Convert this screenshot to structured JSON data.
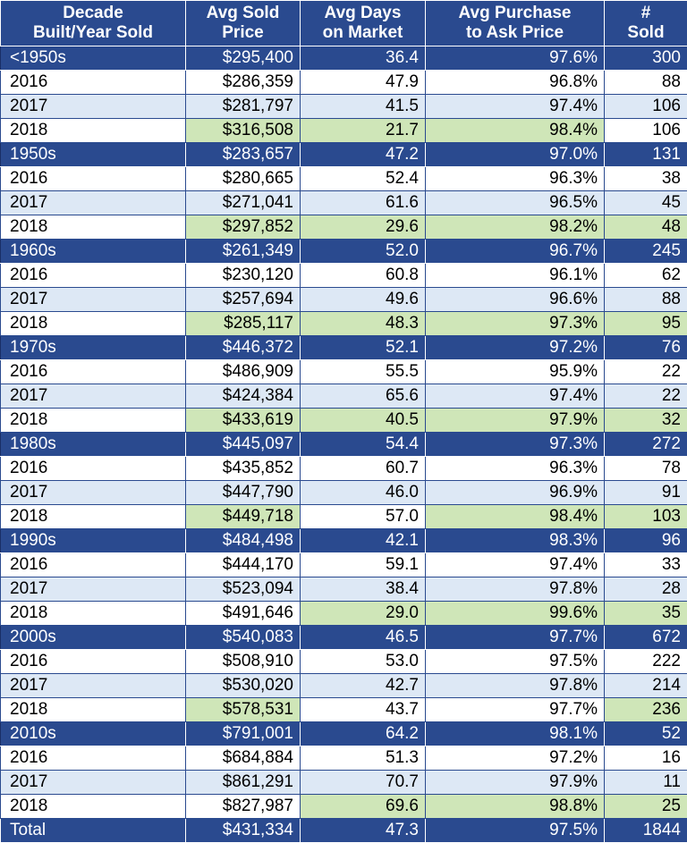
{
  "headers": [
    "Decade\nBuilt/Year Sold",
    "Avg Sold\nPrice",
    "Avg Days\non Market",
    "Avg Purchase\nto Ask Price",
    "#\nSold"
  ],
  "colors": {
    "header_bg": "#2a4a8f",
    "row_alt": "#dde8f5",
    "highlight": "#cfe6b8"
  },
  "rows": [
    {
      "type": "decade",
      "cells": [
        "<1950s",
        "$295,400",
        "36.4",
        "97.6%",
        "300"
      ],
      "hl": [
        0,
        0,
        0,
        0,
        0
      ]
    },
    {
      "type": "y2016",
      "cells": [
        "2016",
        "$286,359",
        "47.9",
        "96.8%",
        "88"
      ],
      "hl": [
        0,
        0,
        0,
        0,
        0
      ]
    },
    {
      "type": "y2017",
      "cells": [
        "2017",
        "$281,797",
        "41.5",
        "97.4%",
        "106"
      ],
      "hl": [
        0,
        0,
        0,
        0,
        0
      ]
    },
    {
      "type": "y2018",
      "cells": [
        "2018",
        "$316,508",
        "21.7",
        "98.4%",
        "106"
      ],
      "hl": [
        0,
        1,
        1,
        1,
        0
      ]
    },
    {
      "type": "decade",
      "cells": [
        "1950s",
        "$283,657",
        "47.2",
        "97.0%",
        "131"
      ],
      "hl": [
        0,
        0,
        0,
        0,
        0
      ]
    },
    {
      "type": "y2016",
      "cells": [
        "2016",
        "$280,665",
        "52.4",
        "96.3%",
        "38"
      ],
      "hl": [
        0,
        0,
        0,
        0,
        0
      ]
    },
    {
      "type": "y2017",
      "cells": [
        "2017",
        "$271,041",
        "61.6",
        "96.5%",
        "45"
      ],
      "hl": [
        0,
        0,
        0,
        0,
        0
      ]
    },
    {
      "type": "y2018",
      "cells": [
        "2018",
        "$297,852",
        "29.6",
        "98.2%",
        "48"
      ],
      "hl": [
        0,
        1,
        1,
        1,
        1
      ]
    },
    {
      "type": "decade",
      "cells": [
        "1960s",
        "$261,349",
        "52.0",
        "96.7%",
        "245"
      ],
      "hl": [
        0,
        0,
        0,
        0,
        0
      ]
    },
    {
      "type": "y2016",
      "cells": [
        "2016",
        "$230,120",
        "60.8",
        "96.1%",
        "62"
      ],
      "hl": [
        0,
        0,
        0,
        0,
        0
      ]
    },
    {
      "type": "y2017",
      "cells": [
        "2017",
        "$257,694",
        "49.6",
        "96.6%",
        "88"
      ],
      "hl": [
        0,
        0,
        0,
        0,
        0
      ]
    },
    {
      "type": "y2018",
      "cells": [
        "2018",
        "$285,117",
        "48.3",
        "97.3%",
        "95"
      ],
      "hl": [
        0,
        1,
        1,
        1,
        1
      ]
    },
    {
      "type": "decade",
      "cells": [
        "1970s",
        "$446,372",
        "52.1",
        "97.2%",
        "76"
      ],
      "hl": [
        0,
        0,
        0,
        0,
        0
      ]
    },
    {
      "type": "y2016",
      "cells": [
        "2016",
        "$486,909",
        "55.5",
        "95.9%",
        "22"
      ],
      "hl": [
        0,
        0,
        0,
        0,
        0
      ]
    },
    {
      "type": "y2017",
      "cells": [
        "2017",
        "$424,384",
        "65.6",
        "97.4%",
        "22"
      ],
      "hl": [
        0,
        0,
        0,
        0,
        0
      ]
    },
    {
      "type": "y2018",
      "cells": [
        "2018",
        "$433,619",
        "40.5",
        "97.9%",
        "32"
      ],
      "hl": [
        0,
        1,
        1,
        1,
        1
      ]
    },
    {
      "type": "decade",
      "cells": [
        "1980s",
        "$445,097",
        "54.4",
        "97.3%",
        "272"
      ],
      "hl": [
        0,
        0,
        0,
        0,
        0
      ]
    },
    {
      "type": "y2016",
      "cells": [
        "2016",
        "$435,852",
        "60.7",
        "96.3%",
        "78"
      ],
      "hl": [
        0,
        0,
        0,
        0,
        0
      ]
    },
    {
      "type": "y2017",
      "cells": [
        "2017",
        "$447,790",
        "46.0",
        "96.9%",
        "91"
      ],
      "hl": [
        0,
        0,
        0,
        0,
        0
      ]
    },
    {
      "type": "y2018",
      "cells": [
        "2018",
        "$449,718",
        "57.0",
        "98.4%",
        "103"
      ],
      "hl": [
        0,
        1,
        0,
        1,
        1
      ]
    },
    {
      "type": "decade",
      "cells": [
        "1990s",
        "$484,498",
        "42.1",
        "98.3%",
        "96"
      ],
      "hl": [
        0,
        0,
        0,
        0,
        0
      ]
    },
    {
      "type": "y2016",
      "cells": [
        "2016",
        "$444,170",
        "59.1",
        "97.4%",
        "33"
      ],
      "hl": [
        0,
        0,
        0,
        0,
        0
      ]
    },
    {
      "type": "y2017",
      "cells": [
        "2017",
        "$523,094",
        "38.4",
        "97.8%",
        "28"
      ],
      "hl": [
        0,
        0,
        0,
        0,
        0
      ]
    },
    {
      "type": "y2018",
      "cells": [
        "2018",
        "$491,646",
        "29.0",
        "99.6%",
        "35"
      ],
      "hl": [
        0,
        0,
        1,
        1,
        1
      ]
    },
    {
      "type": "decade",
      "cells": [
        "2000s",
        "$540,083",
        "46.5",
        "97.7%",
        "672"
      ],
      "hl": [
        0,
        0,
        0,
        0,
        0
      ]
    },
    {
      "type": "y2016",
      "cells": [
        "2016",
        "$508,910",
        "53.0",
        "97.5%",
        "222"
      ],
      "hl": [
        0,
        0,
        0,
        0,
        0
      ]
    },
    {
      "type": "y2017",
      "cells": [
        "2017",
        "$530,020",
        "42.7",
        "97.8%",
        "214"
      ],
      "hl": [
        0,
        0,
        0,
        0,
        0
      ]
    },
    {
      "type": "y2018",
      "cells": [
        "2018",
        "$578,531",
        "43.7",
        "97.7%",
        "236"
      ],
      "hl": [
        0,
        1,
        0,
        0,
        1
      ]
    },
    {
      "type": "decade",
      "cells": [
        "2010s",
        "$791,001",
        "64.2",
        "98.1%",
        "52"
      ],
      "hl": [
        0,
        0,
        0,
        0,
        0
      ]
    },
    {
      "type": "y2016",
      "cells": [
        "2016",
        "$684,884",
        "51.3",
        "97.2%",
        "16"
      ],
      "hl": [
        0,
        0,
        0,
        0,
        0
      ]
    },
    {
      "type": "y2017",
      "cells": [
        "2017",
        "$861,291",
        "70.7",
        "97.9%",
        "11"
      ],
      "hl": [
        0,
        0,
        0,
        0,
        0
      ]
    },
    {
      "type": "y2018",
      "cells": [
        "2018",
        "$827,987",
        "69.6",
        "98.8%",
        "25"
      ],
      "hl": [
        0,
        0,
        1,
        1,
        1
      ]
    },
    {
      "type": "total",
      "cells": [
        "Total",
        "$431,334",
        "47.3",
        "97.5%",
        "1844"
      ],
      "hl": [
        0,
        0,
        0,
        0,
        0
      ]
    }
  ]
}
